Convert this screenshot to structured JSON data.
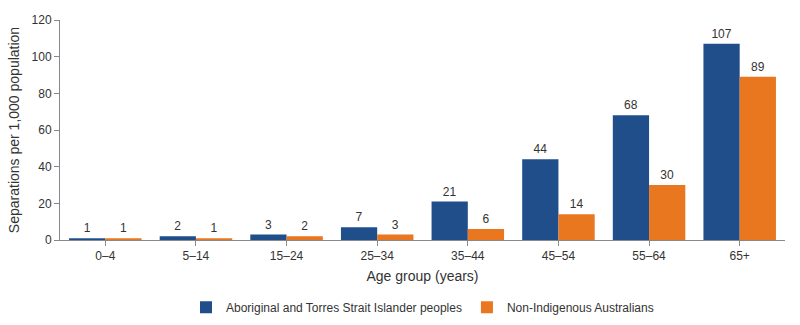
{
  "chart_data": {
    "type": "bar",
    "x_label": "Age group (years)",
    "y_label": "Separations per 1,000 population",
    "categories": [
      "0–4",
      "5–14",
      "15–24",
      "25–34",
      "35–44",
      "45–54",
      "55–64",
      "65+"
    ],
    "series": [
      {
        "name": "Aboriginal and Torres Strait Islander peoples",
        "color": "#1f4e8a",
        "values": [
          1,
          2,
          3,
          7,
          21,
          44,
          68,
          107
        ]
      },
      {
        "name": "Non-Indigenous Australians",
        "color": "#e8771f",
        "values": [
          1,
          1,
          2,
          3,
          6,
          14,
          30,
          89
        ]
      }
    ],
    "ylim": [
      0,
      120
    ],
    "yticks": [
      0,
      20,
      40,
      60,
      80,
      100,
      120
    ],
    "grid": false,
    "legend": "bottom",
    "data_labels": true
  }
}
